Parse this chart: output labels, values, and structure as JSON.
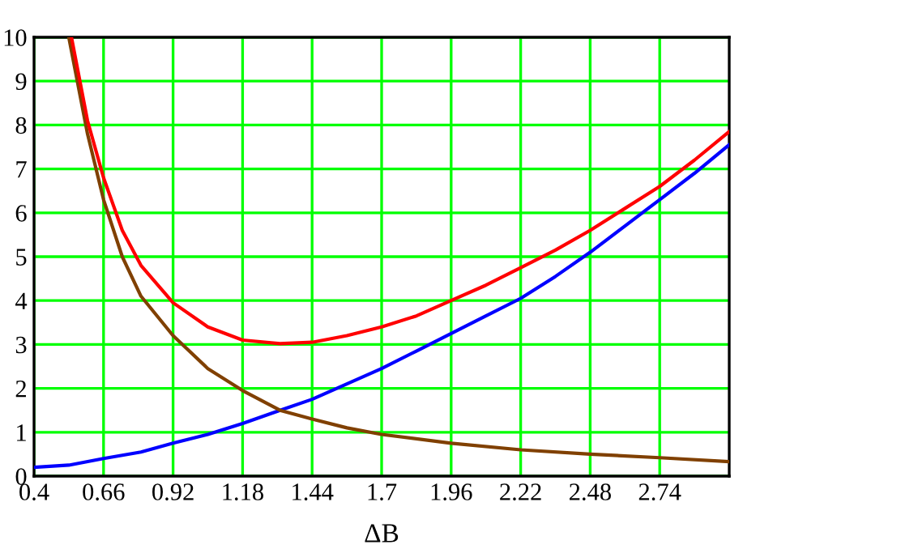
{
  "chart_data": {
    "type": "line",
    "xlabel": "ΔB",
    "xlim": [
      0.4,
      3.0
    ],
    "ylim": [
      0,
      10
    ],
    "xticks": [
      0.4,
      0.66,
      0.92,
      1.18,
      1.44,
      1.7,
      1.96,
      2.22,
      2.48,
      2.74
    ],
    "yticks": [
      0,
      1,
      2,
      3,
      4,
      5,
      6,
      7,
      8,
      9,
      10
    ],
    "grid": true,
    "series": [
      {
        "color": "#0000ff",
        "x": [
          0.4,
          0.53,
          0.66,
          0.8,
          0.92,
          1.05,
          1.18,
          1.32,
          1.44,
          1.57,
          1.7,
          1.83,
          1.96,
          2.09,
          2.22,
          2.35,
          2.48,
          2.61,
          2.74,
          2.87,
          3.0
        ],
        "values": [
          0.2,
          0.25,
          0.4,
          0.55,
          0.75,
          0.95,
          1.2,
          1.5,
          1.75,
          2.1,
          2.45,
          2.85,
          3.25,
          3.65,
          4.05,
          4.55,
          5.1,
          5.7,
          6.3,
          6.9,
          7.55
        ]
      },
      {
        "color": "#804000",
        "x": [
          0.53,
          0.6,
          0.66,
          0.73,
          0.8,
          0.92,
          1.05,
          1.18,
          1.32,
          1.44,
          1.57,
          1.7,
          1.96,
          2.22,
          2.48,
          2.74,
          3.0
        ],
        "values": [
          10,
          7.8,
          6.3,
          5.0,
          4.1,
          3.2,
          2.45,
          1.95,
          1.5,
          1.3,
          1.1,
          0.95,
          0.75,
          0.6,
          0.5,
          0.42,
          0.33
        ]
      },
      {
        "color": "#ff0000",
        "x": [
          0.54,
          0.6,
          0.66,
          0.73,
          0.8,
          0.92,
          1.05,
          1.18,
          1.32,
          1.44,
          1.57,
          1.7,
          1.83,
          1.96,
          2.09,
          2.22,
          2.35,
          2.48,
          2.61,
          2.74,
          2.87,
          3.0
        ],
        "values": [
          10,
          8.1,
          6.8,
          5.6,
          4.8,
          3.95,
          3.4,
          3.1,
          3.02,
          3.05,
          3.2,
          3.4,
          3.65,
          4.0,
          4.35,
          4.75,
          5.15,
          5.6,
          6.1,
          6.6,
          7.2,
          7.85
        ]
      }
    ]
  }
}
